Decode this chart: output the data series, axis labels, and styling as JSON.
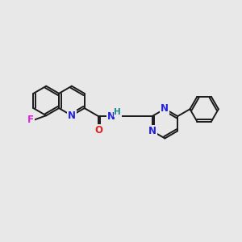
{
  "background_color": "#e8e8e8",
  "bond_color": "#1a1a1a",
  "bond_width": 1.4,
  "atom_colors": {
    "N": "#2222dd",
    "O": "#dd2222",
    "F": "#dd22dd",
    "H": "#228888",
    "C": "#1a1a1a"
  },
  "bg": "#e8e8e8"
}
